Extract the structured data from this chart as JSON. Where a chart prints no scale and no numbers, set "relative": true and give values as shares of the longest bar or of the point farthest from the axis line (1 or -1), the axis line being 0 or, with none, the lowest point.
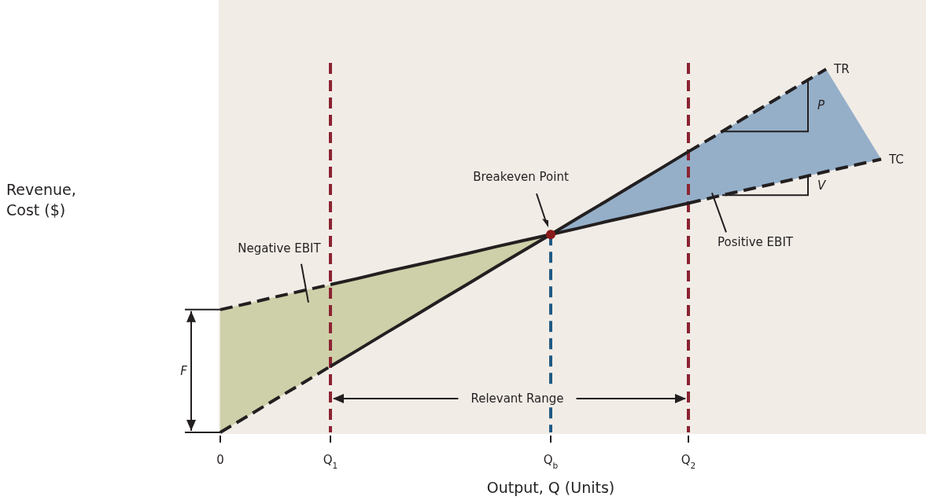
{
  "chart_data": {
    "type": "line",
    "relative": true,
    "xlabel": "Output, Q  (Units)",
    "categories": [
      "0",
      null,
      null,
      null,
      "Q$_{1}$",
      null,
      null,
      null,
      null,
      null,
      null,
      null,
      "Q$_{b}$",
      null,
      null,
      null,
      null,
      "Q$_{2}$",
      null,
      null,
      null,
      null,
      null,
      null,
      null,
      null
    ],
    "series": [
      {
        "type": "area",
        "color": "#cdd0a8",
        "values": [
          0.338,
          0.355,
          0.373,
          0.39,
          0.407,
          0.424,
          0.442,
          0.459,
          0.476,
          0.493,
          0.511,
          0.528,
          0.545,
          null,
          null,
          null,
          null,
          null,
          null,
          null,
          null,
          null,
          null,
          null,
          null,
          null
        ]
      },
      {
        "type": "area",
        "color": "#95afc9",
        "values": [
          null,
          null,
          null,
          null,
          null,
          null,
          null,
          null,
          null,
          null,
          null,
          null,
          0.545,
          0.591,
          0.636,
          0.682,
          0.727,
          0.773,
          0.818,
          0.864,
          0.909,
          0.955,
          1,
          0.876,
          0.752,
          null
        ]
      },
      {
        "name": "TR",
        "color": "#231f20",
        "line_style": "dashed",
        "values": [
          0,
          0.045,
          0.091,
          0.136,
          0.182,
          0.227,
          0.273,
          0.318,
          0.364,
          0.409,
          0.455,
          0.5,
          0.545,
          0.591,
          0.636,
          0.682,
          0.727,
          0.773,
          0.818,
          0.864,
          0.909,
          0.955,
          1,
          null,
          null,
          null
        ]
      },
      {
        "name": "TC",
        "color": "#231f20",
        "line_style": "dashed",
        "values": [
          0.338,
          0.355,
          0.373,
          0.39,
          0.407,
          0.424,
          0.442,
          0.459,
          0.476,
          0.493,
          0.511,
          0.528,
          0.545,
          0.562,
          0.58,
          0.597,
          0.614,
          0.631,
          0.649,
          0.666,
          0.683,
          0.7,
          0.718,
          0.735,
          0.752,
          null
        ]
      },
      {
        "type": "scatter",
        "color": "#8b1a1a",
        "values": [
          null,
          null,
          null,
          null,
          null,
          null,
          null,
          null,
          null,
          null,
          null,
          null,
          0.545,
          null,
          null,
          null,
          null,
          null,
          null,
          null,
          null,
          null,
          null,
          null,
          null,
          null
        ]
      }
    ],
    "ref_lines": [
      {
        "axis": "x",
        "value": "Q$_{1}$",
        "color": "#8b2332",
        "line_style": "dashed"
      },
      {
        "axis": "x",
        "value": "Q$_{b}$",
        "color": "#1f5a84",
        "line_style": "dashed"
      },
      {
        "axis": "x",
        "value": "Q$_{2}$",
        "color": "#8b2332",
        "line_style": "dashed"
      }
    ],
    "annotations": [
      "Breakeven Point",
      "Negative EBIT",
      "Positive EBIT",
      "F",
      "P",
      "V",
      "Relevant Range",
      "Revenue,\nCost ($)"
    ]
  }
}
